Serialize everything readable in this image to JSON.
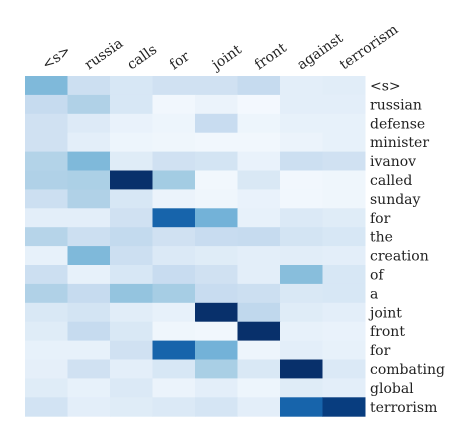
{
  "chart_data": {
    "type": "heatmap",
    "title": "",
    "xlabel": "",
    "ylabel": "",
    "colormap": "Blues",
    "value_range": [
      0,
      1
    ],
    "x_tick_position": "top",
    "y_tick_position": "right",
    "columns": [
      "<s>",
      "russia",
      "calls",
      "for",
      "joint",
      "front",
      "against",
      "terrorism"
    ],
    "rows": [
      "<s>",
      "russian",
      "defense",
      "minister",
      "ivanov",
      "called",
      "sunday",
      "for",
      "the",
      "creation",
      "of",
      "a",
      "joint",
      "front",
      "for",
      "combating",
      "global",
      "terrorism"
    ],
    "values": [
      [
        0.45,
        0.22,
        0.16,
        0.2,
        0.2,
        0.25,
        0.1,
        0.11
      ],
      [
        0.25,
        0.32,
        0.16,
        0.03,
        0.06,
        0.02,
        0.1,
        0.1
      ],
      [
        0.2,
        0.13,
        0.07,
        0.05,
        0.24,
        0.05,
        0.08,
        0.08
      ],
      [
        0.2,
        0.1,
        0.05,
        0.04,
        0.03,
        0.03,
        0.06,
        0.08
      ],
      [
        0.31,
        0.45,
        0.12,
        0.2,
        0.18,
        0.07,
        0.22,
        0.2
      ],
      [
        0.32,
        0.33,
        1.0,
        0.36,
        0.03,
        0.15,
        0.03,
        0.04
      ],
      [
        0.22,
        0.32,
        0.16,
        0.06,
        0.04,
        0.07,
        0.03,
        0.04
      ],
      [
        0.1,
        0.1,
        0.2,
        0.8,
        0.48,
        0.08,
        0.14,
        0.12
      ],
      [
        0.3,
        0.22,
        0.26,
        0.2,
        0.24,
        0.25,
        0.18,
        0.16
      ],
      [
        0.08,
        0.45,
        0.22,
        0.14,
        0.12,
        0.1,
        0.11,
        0.1
      ],
      [
        0.22,
        0.08,
        0.16,
        0.24,
        0.2,
        0.1,
        0.43,
        0.16
      ],
      [
        0.32,
        0.25,
        0.4,
        0.35,
        0.24,
        0.22,
        0.15,
        0.16
      ],
      [
        0.15,
        0.18,
        0.11,
        0.08,
        1.0,
        0.27,
        0.12,
        0.1
      ],
      [
        0.12,
        0.25,
        0.15,
        0.04,
        0.03,
        1.0,
        0.08,
        0.07
      ],
      [
        0.08,
        0.08,
        0.2,
        0.8,
        0.48,
        0.05,
        0.1,
        0.08
      ],
      [
        0.09,
        0.2,
        0.1,
        0.16,
        0.34,
        0.15,
        1.0,
        0.14
      ],
      [
        0.12,
        0.08,
        0.14,
        0.06,
        0.1,
        0.05,
        0.12,
        0.1
      ],
      [
        0.19,
        0.1,
        0.12,
        0.14,
        0.17,
        0.1,
        0.8,
        0.95
      ]
    ]
  }
}
